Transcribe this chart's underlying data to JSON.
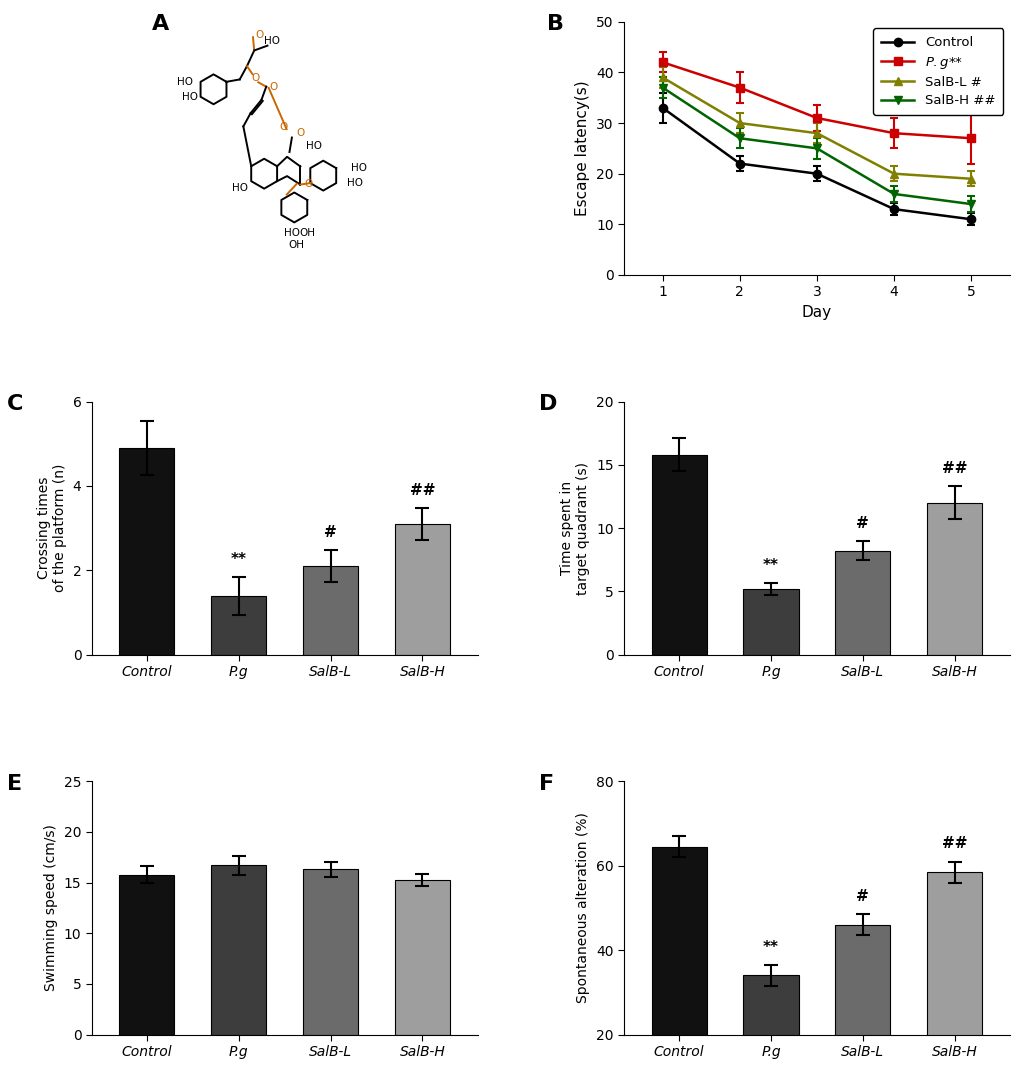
{
  "panel_labels": [
    "A",
    "B",
    "C",
    "D",
    "E",
    "F"
  ],
  "line_chart": {
    "days": [
      1,
      2,
      3,
      4,
      5
    ],
    "control": {
      "values": [
        33,
        22,
        20,
        13,
        11
      ],
      "errors": [
        3,
        1.5,
        1.5,
        1.2,
        1.2
      ],
      "color": "#000000",
      "marker": "o",
      "label": "Control"
    },
    "pg": {
      "values": [
        42,
        37,
        31,
        28,
        27
      ],
      "errors": [
        2,
        3,
        2.5,
        3,
        5
      ],
      "color": "#CC0000",
      "marker": "s",
      "label": "$P.g$**"
    },
    "salb_l": {
      "values": [
        39,
        30,
        28,
        20,
        19
      ],
      "errors": [
        2,
        2,
        2,
        1.5,
        1.5
      ],
      "color": "#808000",
      "marker": "^",
      "label": "SalB-L #"
    },
    "salb_h": {
      "values": [
        37,
        27,
        25,
        16,
        14
      ],
      "errors": [
        2,
        2,
        2,
        1.5,
        1.5
      ],
      "color": "#006400",
      "marker": "v",
      "label": "SalB-H ##"
    }
  },
  "bar_colors": {
    "Control": "#111111",
    "Pg": "#3d3d3d",
    "SalB_L": "#6b6b6b",
    "SalB_H": "#9e9e9e"
  },
  "crossing": {
    "values": [
      4.9,
      1.4,
      2.1,
      3.1
    ],
    "errors": [
      0.65,
      0.45,
      0.38,
      0.38
    ],
    "ylim": [
      0,
      6
    ],
    "yticks": [
      0,
      2,
      4,
      6
    ],
    "ylabel": "Crossing times\nof the platform (n)",
    "annotations": [
      "",
      "**",
      "#",
      "##"
    ]
  },
  "time_quadrant": {
    "values": [
      15.8,
      5.2,
      8.2,
      12.0
    ],
    "errors": [
      1.3,
      0.45,
      0.75,
      1.3
    ],
    "ylim": [
      0,
      20
    ],
    "yticks": [
      0,
      5,
      10,
      15,
      20
    ],
    "ylabel": "Time spent in\ntarget quadrant (s)",
    "annotations": [
      "",
      "**",
      "#",
      "##"
    ]
  },
  "swimming": {
    "values": [
      15.8,
      16.7,
      16.3,
      15.3
    ],
    "errors": [
      0.8,
      0.9,
      0.7,
      0.6
    ],
    "ylim": [
      0,
      25
    ],
    "yticks": [
      0,
      5,
      10,
      15,
      20,
      25
    ],
    "ylabel": "Swimming speed (cm/s)",
    "annotations": [
      "",
      "",
      "",
      ""
    ]
  },
  "ymaze": {
    "values": [
      64.5,
      34.0,
      46.0,
      58.5
    ],
    "errors": [
      2.5,
      2.5,
      2.5,
      2.5
    ],
    "ylim": [
      20,
      80
    ],
    "yticks": [
      20,
      40,
      60,
      80
    ],
    "ylabel": "Spontaneous alteration (%)",
    "annotations": [
      "",
      "**",
      "#",
      "##"
    ]
  },
  "categories": [
    "Control",
    "P.g",
    "SalB-L",
    "SalB-H"
  ],
  "background_color": "#ffffff",
  "line_ylim": [
    0,
    50
  ],
  "line_yticks": [
    0,
    10,
    20,
    30,
    40,
    50
  ],
  "orange_color": "#CC6600",
  "molecule_lw": 1.4
}
